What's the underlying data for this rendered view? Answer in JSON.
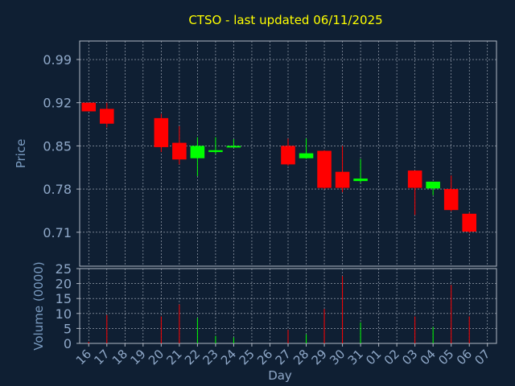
{
  "chart_data": {
    "type": "candlestick",
    "title": "CTSO - last updated 06/11/2025",
    "xlabel": "Day",
    "price_panel": {
      "ylabel": "Price",
      "ylim": [
        0.655,
        1.02
      ],
      "yticks": [
        0.71,
        0.78,
        0.85,
        0.92,
        0.99
      ],
      "ytick_labels": [
        "0.71",
        "0.78",
        "0.85",
        "0.92",
        "0.99"
      ]
    },
    "volume_panel": {
      "ylabel": "Volume (0000)",
      "ylim": [
        0,
        25
      ],
      "yticks": [
        0,
        5,
        10,
        15,
        20,
        25
      ],
      "ytick_labels": [
        "0",
        "5",
        "10",
        "15",
        "20",
        "25"
      ]
    },
    "x_tick_labels": [
      "16",
      "17",
      "18",
      "19",
      "20",
      "21",
      "22",
      "23",
      "24",
      "25",
      "26",
      "27",
      "28",
      "29",
      "30",
      "31",
      "01",
      "02",
      "03",
      "04",
      "05",
      "06",
      "07"
    ],
    "grid": true,
    "colors": {
      "background": "#0f1f33",
      "grid": "#b0b8c4",
      "axis_text": "#8fa8c8",
      "title": "#ffff00",
      "label": "#7a9bc0",
      "up": "#00ff00",
      "down": "#ff0000"
    },
    "candles": [
      {
        "x": "16",
        "open": 0.92,
        "high": 0.92,
        "low": 0.906,
        "close": 0.906,
        "volume": 0.5
      },
      {
        "x": "17",
        "open": 0.91,
        "high": 0.92,
        "low": 0.88,
        "close": 0.886,
        "volume": 9.5
      },
      {
        "x": "20",
        "open": 0.895,
        "high": 0.902,
        "low": 0.84,
        "close": 0.848,
        "volume": 9.0
      },
      {
        "x": "21",
        "open": 0.855,
        "high": 0.882,
        "low": 0.82,
        "close": 0.828,
        "volume": 13.0
      },
      {
        "x": "22",
        "open": 0.83,
        "high": 0.864,
        "low": 0.801,
        "close": 0.85,
        "volume": 8.5
      },
      {
        "x": "23",
        "open": 0.84,
        "high": 0.864,
        "low": 0.837,
        "close": 0.843,
        "volume": 2.5
      },
      {
        "x": "24",
        "open": 0.849,
        "high": 0.861,
        "low": 0.848,
        "close": 0.85,
        "volume": 2.0
      },
      {
        "x": "27",
        "open": 0.85,
        "high": 0.862,
        "low": 0.818,
        "close": 0.82,
        "volume": 4.5
      },
      {
        "x": "28",
        "open": 0.83,
        "high": 0.862,
        "low": 0.829,
        "close": 0.838,
        "volume": 3.0
      },
      {
        "x": "29",
        "open": 0.842,
        "high": 0.843,
        "low": 0.78,
        "close": 0.782,
        "volume": 11.5
      },
      {
        "x": "30",
        "open": 0.808,
        "high": 0.85,
        "low": 0.775,
        "close": 0.782,
        "volume": 22.5
      },
      {
        "x": "31",
        "open": 0.793,
        "high": 0.829,
        "low": 0.79,
        "close": 0.797,
        "volume": 7.0
      },
      {
        "x": "03",
        "open": 0.81,
        "high": 0.81,
        "low": 0.738,
        "close": 0.782,
        "volume": 9.0
      },
      {
        "x": "04",
        "open": 0.781,
        "high": 0.792,
        "low": 0.77,
        "close": 0.792,
        "volume": 5.5
      },
      {
        "x": "05",
        "open": 0.78,
        "high": 0.802,
        "low": 0.744,
        "close": 0.746,
        "volume": 19.5
      },
      {
        "x": "06",
        "open": 0.74,
        "high": 0.742,
        "low": 0.709,
        "close": 0.711,
        "volume": 9.0
      }
    ]
  }
}
